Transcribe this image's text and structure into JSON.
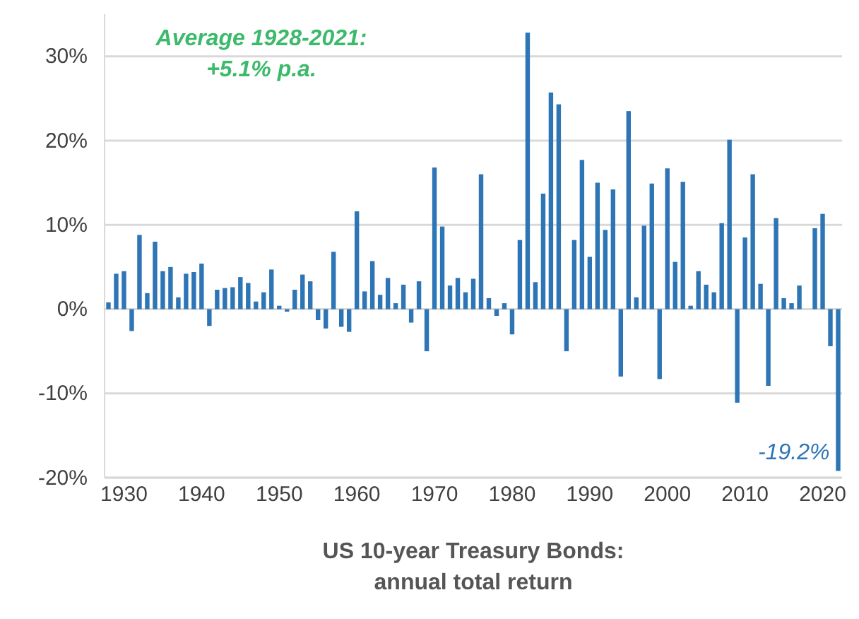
{
  "chart_data": {
    "type": "bar",
    "title": "US 10-year Treasury Bonds:\nannual total return",
    "x": [
      1928,
      1929,
      1930,
      1931,
      1932,
      1933,
      1934,
      1935,
      1936,
      1937,
      1938,
      1939,
      1940,
      1941,
      1942,
      1943,
      1944,
      1945,
      1946,
      1947,
      1948,
      1949,
      1950,
      1951,
      1952,
      1953,
      1954,
      1955,
      1956,
      1957,
      1958,
      1959,
      1960,
      1961,
      1962,
      1963,
      1964,
      1965,
      1966,
      1967,
      1968,
      1969,
      1970,
      1971,
      1972,
      1973,
      1974,
      1975,
      1976,
      1977,
      1978,
      1979,
      1980,
      1981,
      1982,
      1983,
      1984,
      1985,
      1986,
      1987,
      1988,
      1989,
      1990,
      1991,
      1992,
      1993,
      1994,
      1995,
      1996,
      1997,
      1998,
      1999,
      2000,
      2001,
      2002,
      2003,
      2004,
      2005,
      2006,
      2007,
      2008,
      2009,
      2010,
      2011,
      2012,
      2013,
      2014,
      2015,
      2016,
      2017,
      2018,
      2019,
      2020,
      2021,
      2022
    ],
    "series": [
      {
        "color": "#2e75b6",
        "values": [
          0.8,
          4.2,
          4.5,
          -2.6,
          8.8,
          1.9,
          8.0,
          4.5,
          5.0,
          1.4,
          4.2,
          4.4,
          5.4,
          -2.0,
          2.3,
          2.5,
          2.6,
          3.8,
          3.1,
          0.9,
          2.0,
          4.7,
          0.4,
          -0.3,
          2.3,
          4.1,
          3.3,
          -1.3,
          -2.3,
          6.8,
          -2.1,
          -2.7,
          11.6,
          2.1,
          5.7,
          1.7,
          3.7,
          0.7,
          2.9,
          -1.6,
          3.3,
          -5.0,
          16.8,
          9.8,
          2.8,
          3.7,
          2.0,
          3.6,
          16.0,
          1.3,
          -0.8,
          0.7,
          -3.0,
          8.2,
          32.8,
          3.2,
          13.7,
          25.7,
          24.3,
          -5.0,
          8.2,
          17.7,
          6.2,
          15.0,
          9.4,
          14.2,
          -8.0,
          23.5,
          1.4,
          9.9,
          14.9,
          -8.3,
          16.7,
          5.6,
          15.1,
          0.4,
          4.5,
          2.9,
          2.0,
          10.2,
          20.1,
          -11.1,
          8.5,
          16.0,
          3.0,
          -9.1,
          10.8,
          1.3,
          0.7,
          2.8,
          0.0,
          9.6,
          11.3,
          -4.4,
          -19.2
        ]
      }
    ],
    "xlim": [
      1927.5,
      2022.5
    ],
    "xticks": [
      1930,
      1940,
      1950,
      1960,
      1970,
      1980,
      1990,
      2000,
      2010,
      2020
    ],
    "ylim": [
      -20,
      35
    ],
    "yticks": [
      {
        "value": -20,
        "label": "-20%"
      },
      {
        "value": -10,
        "label": "-10%"
      },
      {
        "value": 0,
        "label": "0%"
      },
      {
        "value": 10,
        "label": "10%"
      },
      {
        "value": 20,
        "label": "20%"
      },
      {
        "value": 30,
        "label": "30%"
      }
    ],
    "grid": "y",
    "annotations": [
      "Average 1928-2021:\n+5.1% p.a.",
      {
        "text": "-19.2%",
        "x": 2022,
        "y": -19.2
      }
    ]
  }
}
